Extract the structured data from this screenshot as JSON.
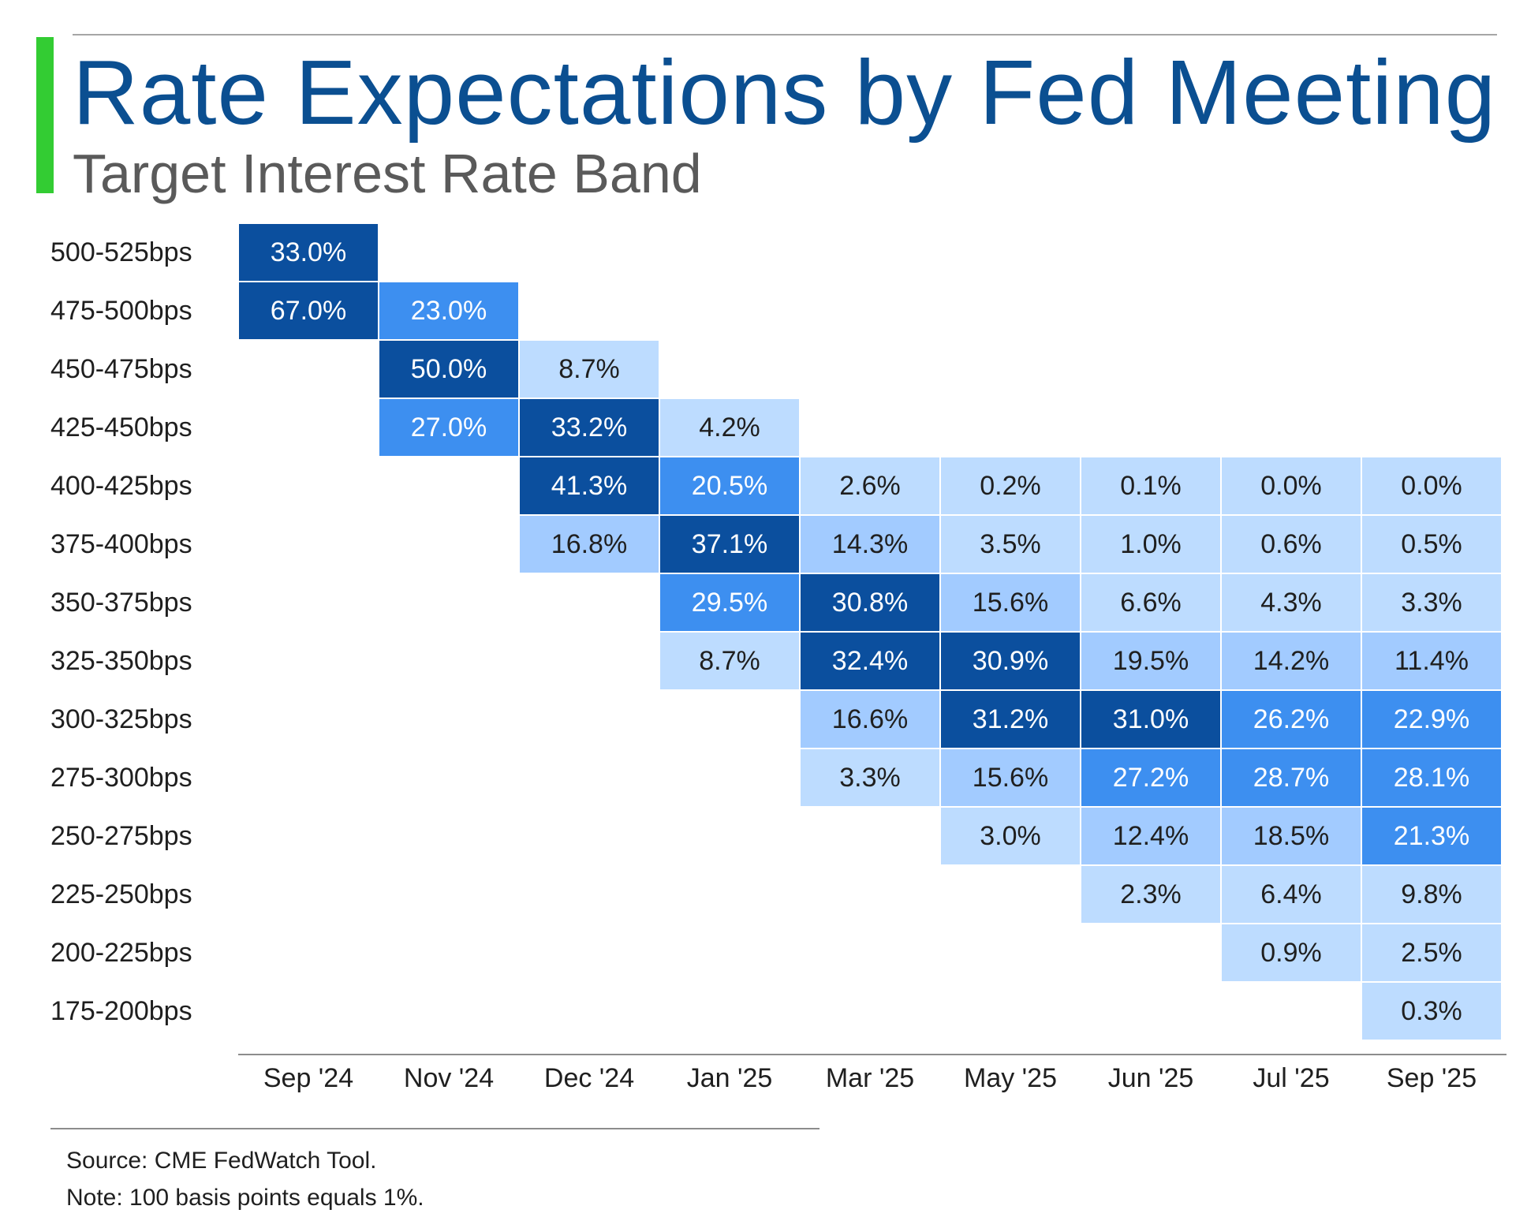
{
  "title": "Rate Expectations by Fed Meeting",
  "subtitle": "Target Interest Rate Band",
  "source": "Source: CME FedWatch Tool.",
  "note": "Note: 100 basis points equals 1%.",
  "colors": {
    "accent": "#33cc33",
    "title": "#0b4f91",
    "very_light": "#bddcff",
    "light": "#a2cbff",
    "medium": "#3d8ff0",
    "dark": "#0b4f9e"
  },
  "chart_data": {
    "type": "heatmap",
    "title": "Rate Expectations by Fed Meeting",
    "subtitle": "Target Interest Rate Band",
    "x_categories": [
      "Sep '24",
      "Nov '24",
      "Dec '24",
      "Jan '25",
      "Mar '25",
      "May '25",
      "Jun '25",
      "Jul '25",
      "Sep '25"
    ],
    "y_categories": [
      "500-525bps",
      "475-500bps",
      "450-475bps",
      "425-450bps",
      "400-425bps",
      "375-400bps",
      "350-375bps",
      "325-350bps",
      "300-325bps",
      "275-300bps",
      "250-275bps",
      "225-250bps",
      "200-225bps",
      "175-200bps"
    ],
    "unit": "%",
    "values": [
      [
        33.0,
        null,
        null,
        null,
        null,
        null,
        null,
        null,
        null
      ],
      [
        67.0,
        23.0,
        null,
        null,
        null,
        null,
        null,
        null,
        null
      ],
      [
        null,
        50.0,
        8.7,
        null,
        null,
        null,
        null,
        null,
        null
      ],
      [
        null,
        27.0,
        33.2,
        4.2,
        null,
        null,
        null,
        null,
        null
      ],
      [
        null,
        null,
        41.3,
        20.5,
        2.6,
        0.2,
        0.1,
        0.0,
        0.0
      ],
      [
        null,
        null,
        16.8,
        37.1,
        14.3,
        3.5,
        1.0,
        0.6,
        0.5
      ],
      [
        null,
        null,
        null,
        29.5,
        30.8,
        15.6,
        6.6,
        4.3,
        3.3
      ],
      [
        null,
        null,
        null,
        8.7,
        32.4,
        30.9,
        19.5,
        14.2,
        11.4
      ],
      [
        null,
        null,
        null,
        null,
        16.6,
        31.2,
        31.0,
        26.2,
        22.9
      ],
      [
        null,
        null,
        null,
        null,
        3.3,
        15.6,
        27.2,
        28.7,
        28.1
      ],
      [
        null,
        null,
        null,
        null,
        null,
        3.0,
        12.4,
        18.5,
        21.3
      ],
      [
        null,
        null,
        null,
        null,
        null,
        null,
        2.3,
        6.4,
        9.8
      ],
      [
        null,
        null,
        null,
        null,
        null,
        null,
        null,
        0.9,
        2.5
      ],
      [
        null,
        null,
        null,
        null,
        null,
        null,
        null,
        null,
        0.3
      ]
    ]
  }
}
